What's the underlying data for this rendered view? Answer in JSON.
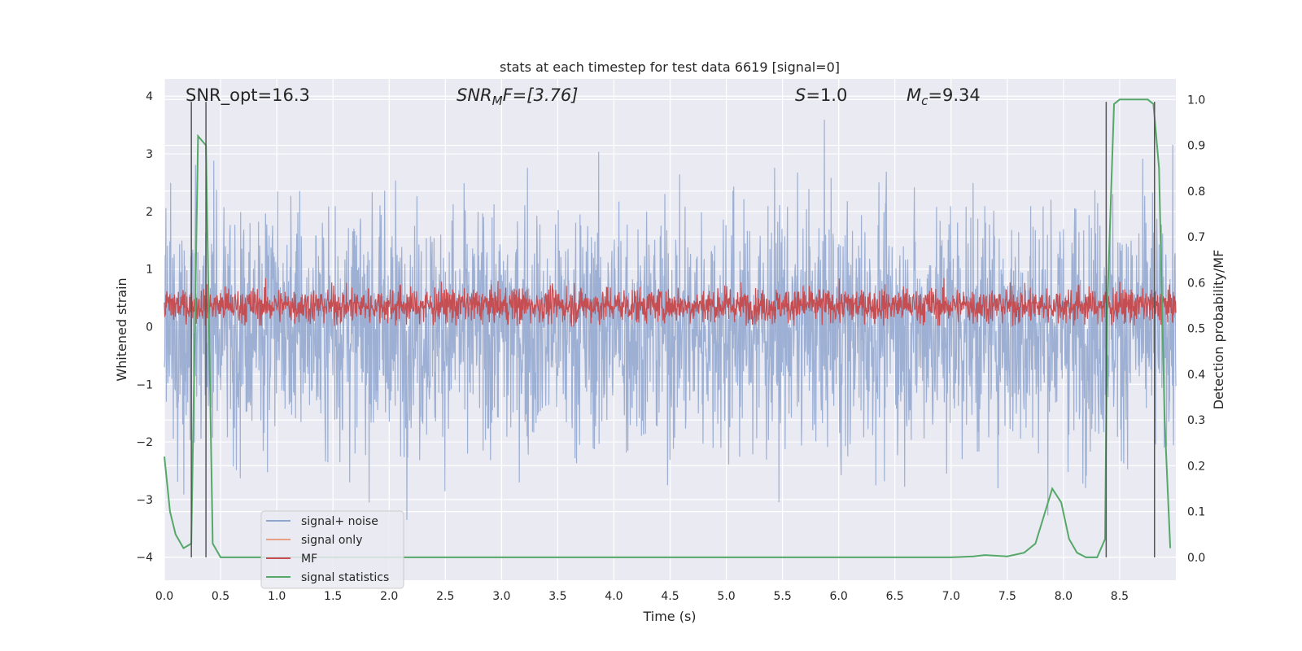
{
  "chart_data": {
    "type": "line",
    "title": "stats at each timestep for test data 6619 [signal=0]",
    "xlabel": "Time (s)",
    "ylabel": "Whitened strain",
    "ylabel_right": "Detection probability/MF",
    "xlim": [
      0.0,
      9.0
    ],
    "ylim": [
      -4.4,
      4.3
    ],
    "ylim_right": [
      -0.05,
      1.045
    ],
    "x_ticks": [
      "0.0",
      "0.5",
      "1.0",
      "1.5",
      "2.0",
      "2.5",
      "3.0",
      "3.5",
      "4.0",
      "4.5",
      "5.0",
      "5.5",
      "6.0",
      "6.5",
      "7.0",
      "7.5",
      "8.0",
      "8.5"
    ],
    "y_ticks": [
      "−4",
      "−3",
      "−2",
      "−1",
      "0",
      "1",
      "2",
      "3",
      "4"
    ],
    "y_right_ticks": [
      "0.0",
      "0.1",
      "0.2",
      "0.3",
      "0.4",
      "0.5",
      "0.6",
      "0.7",
      "0.8",
      "0.9",
      "1.0"
    ],
    "grid": true,
    "annotations": {
      "snr_opt": "SNR_opt=16.3",
      "snr_mf_label": "SNR",
      "snr_mf_sub": "M",
      "snr_mf_rest": "F=[3.76]",
      "s_label": "S",
      "s_value": "=1.0",
      "mc_label": "M",
      "mc_sub": "c",
      "mc_value": "=9.34"
    },
    "vertical_lines_s": [
      0.24,
      0.37,
      8.38,
      8.81
    ],
    "series": [
      {
        "name": "signal+ noise",
        "color": "#8fa6cf",
        "axis": "left",
        "description": "whitened noise, roughly between -3 and 3.8"
      },
      {
        "name": "signal only",
        "color": "#e8a085",
        "axis": "left",
        "values": []
      },
      {
        "name": "MF",
        "color": "#c44e52",
        "axis": "left",
        "description": "matched filter output, roughly 0 to 0.8"
      },
      {
        "name": "signal statistics",
        "color": "#55a868",
        "axis": "right",
        "x": [
          0.0,
          0.05,
          0.1,
          0.17,
          0.24,
          0.3,
          0.37,
          0.43,
          0.5,
          1.0,
          2.0,
          3.0,
          4.0,
          5.0,
          6.0,
          7.0,
          7.2,
          7.3,
          7.5,
          7.65,
          7.75,
          7.9,
          7.98,
          8.05,
          8.12,
          8.2,
          8.3,
          8.37,
          8.39,
          8.45,
          8.5,
          8.75,
          8.8,
          8.85,
          8.9,
          8.95
        ],
        "values": [
          0.22,
          0.1,
          0.05,
          0.02,
          0.03,
          0.92,
          0.9,
          0.03,
          0.0,
          0.0,
          0.0,
          0.0,
          0.0,
          0.0,
          0.0,
          0.0,
          0.002,
          0.005,
          0.002,
          0.01,
          0.03,
          0.15,
          0.12,
          0.04,
          0.01,
          0.0,
          0.0,
          0.04,
          0.55,
          0.99,
          1.0,
          1.0,
          0.99,
          0.85,
          0.3,
          0.02
        ]
      }
    ],
    "legend": {
      "placement": "lower-left",
      "entries": [
        "signal+ noise",
        "signal only",
        "MF",
        "signal statistics"
      ]
    }
  }
}
